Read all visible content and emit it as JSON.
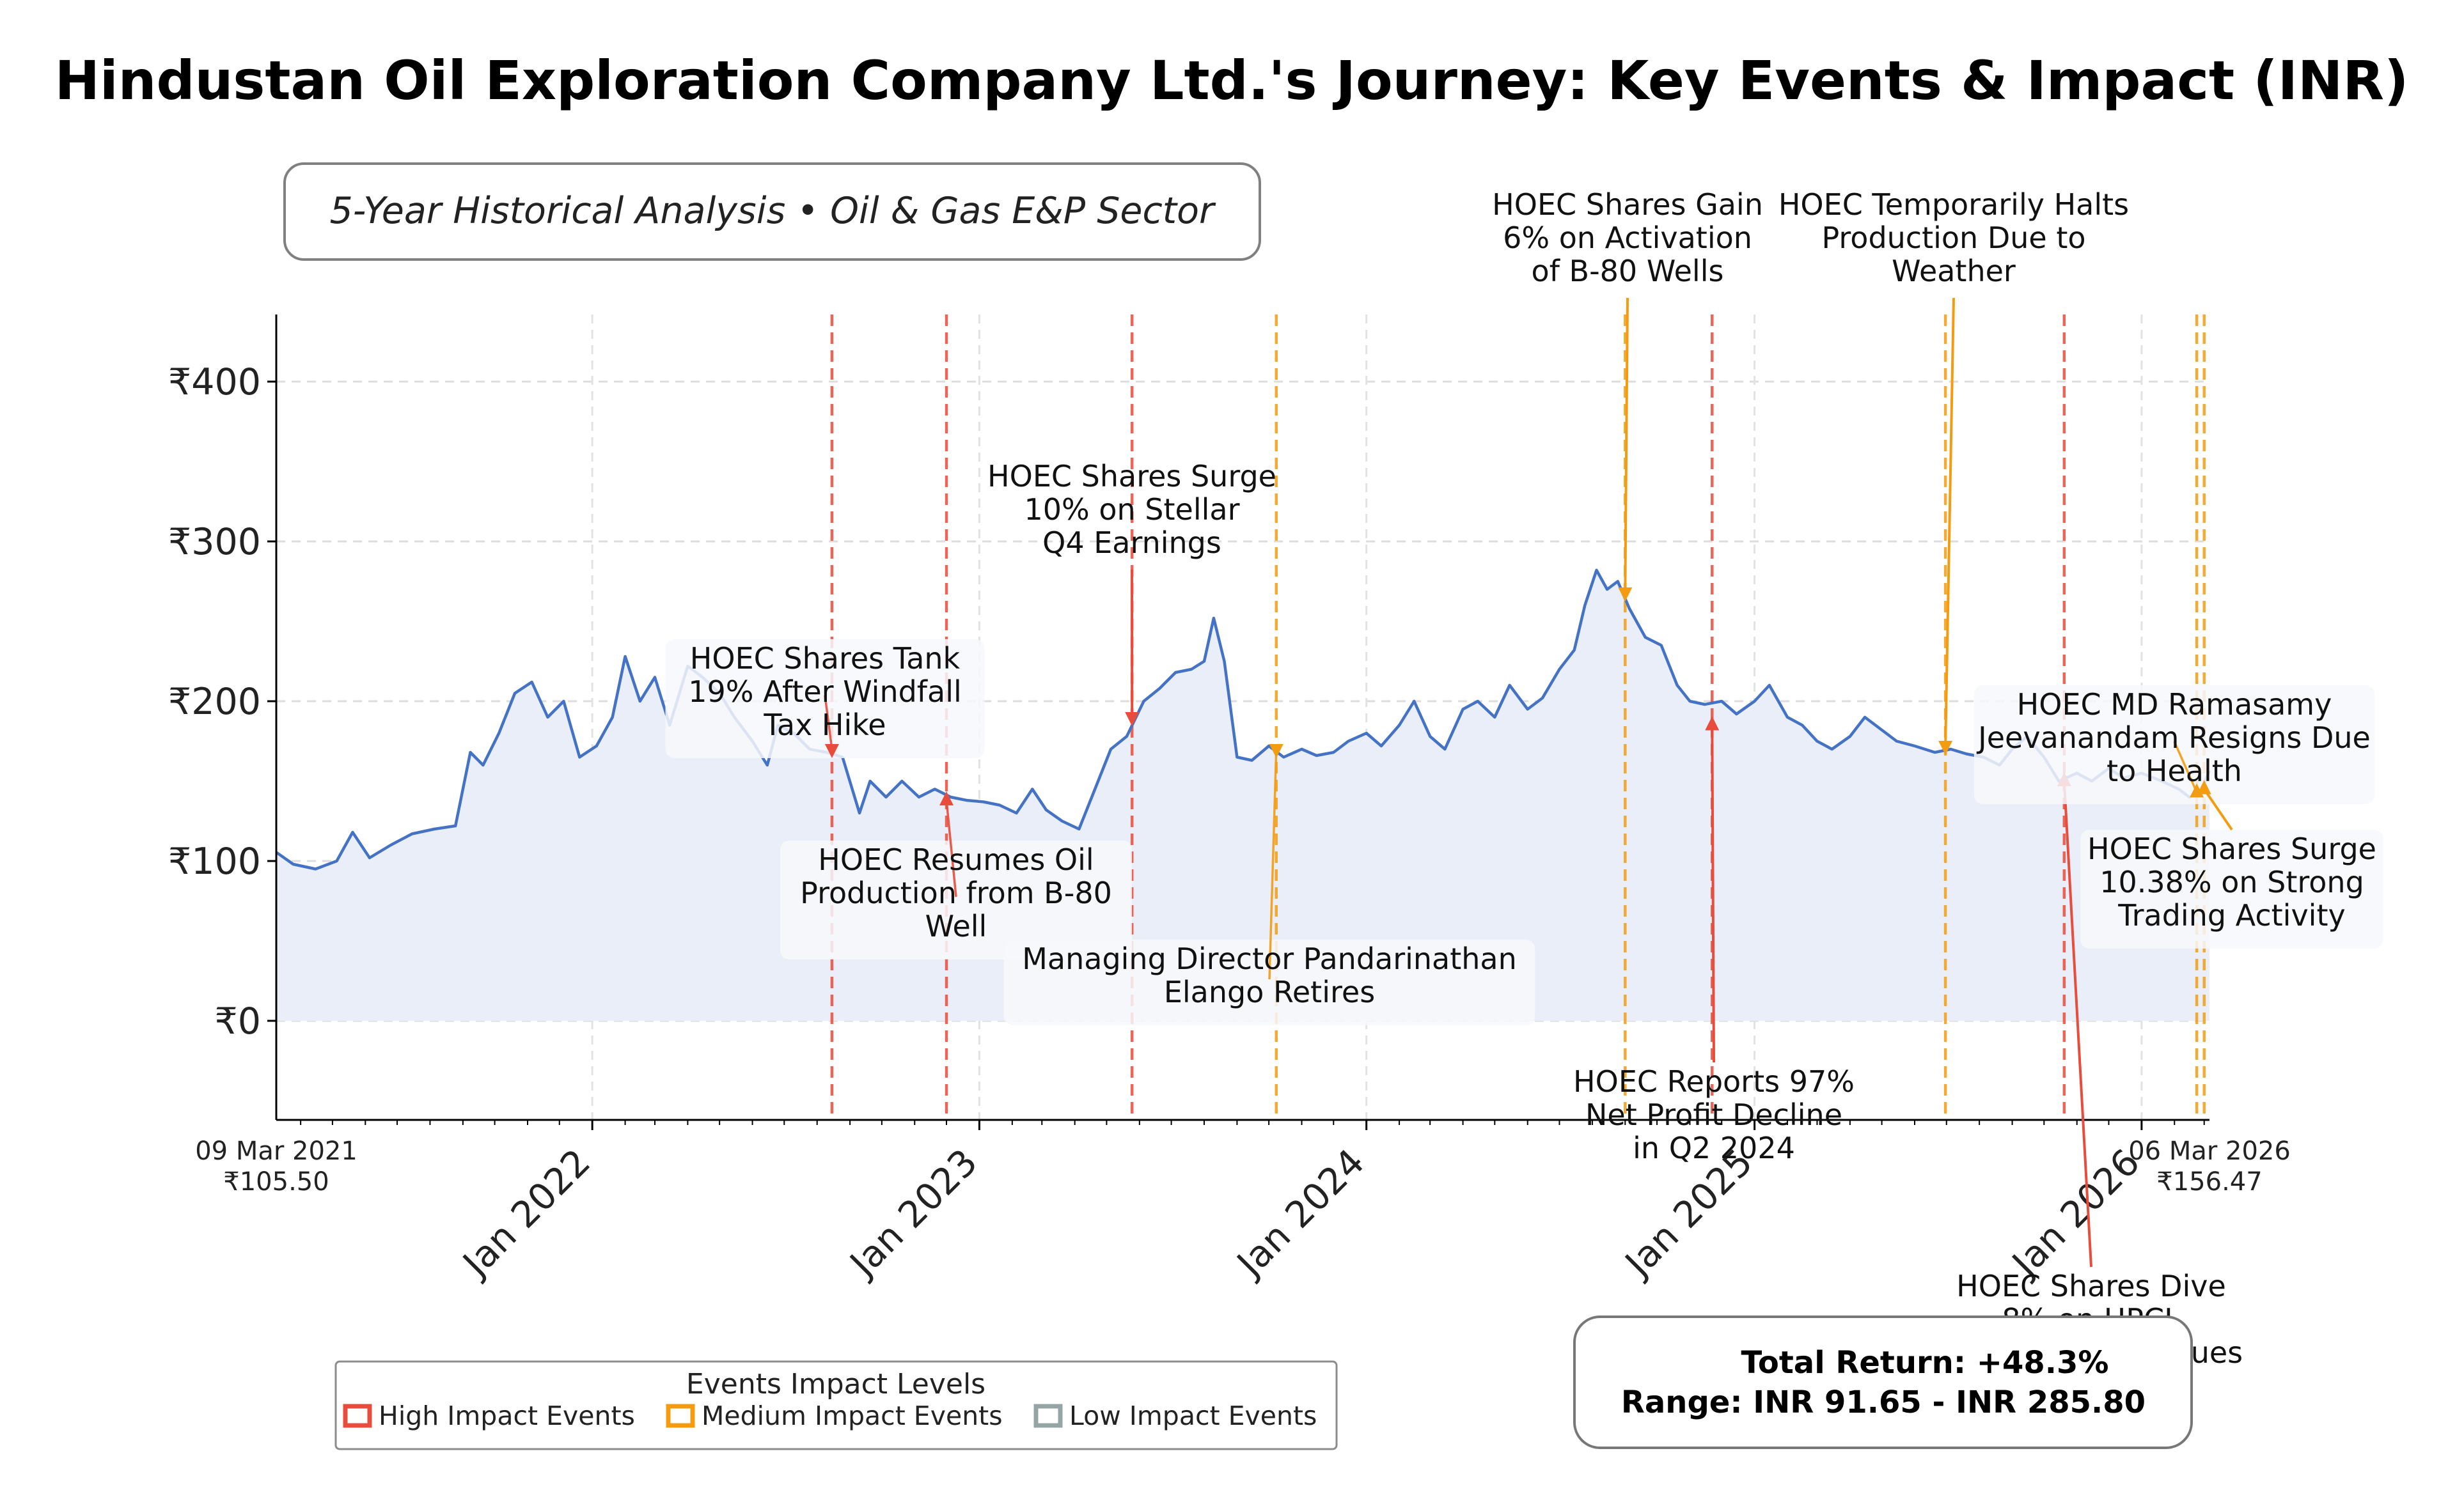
{
  "chart_data": {
    "type": "line",
    "title": "Hindustan Oil Exploration Company Ltd.'s Journey: Key Events & Impact (INR)",
    "subtitle": "5-Year Historical Analysis • Oil & Gas E&P Sector",
    "xlabel": "",
    "ylabel": "",
    "currency_symbol": "₹",
    "y_ticks": [
      0,
      100,
      200,
      300,
      400
    ],
    "y_tick_labels": [
      "₹0",
      "₹100",
      "₹200",
      "₹300",
      "₹400"
    ],
    "ylim": [
      -62,
      442
    ],
    "xlim": [
      "2021-03-09",
      "2026-03-06"
    ],
    "x_ticks": [
      "2022-01-01",
      "2023-01-01",
      "2024-01-01",
      "2025-01-01",
      "2026-01-01"
    ],
    "x_tick_labels": [
      "Jan 2022",
      "Jan 2023",
      "Jan 2024",
      "Jan 2025",
      "Jan 2026"
    ],
    "start_label": {
      "date": "09 Mar 2021",
      "price": "₹105.50"
    },
    "end_label": {
      "date": "06 Mar 2026",
      "price": "₹156.47"
    },
    "grid": true,
    "line_color": "#4472c4",
    "fill_color": "#e9eef8",
    "series": [
      {
        "points": [
          [
            "2021-03-09",
            105.5
          ],
          [
            "2021-03-25",
            98
          ],
          [
            "2021-04-15",
            95
          ],
          [
            "2021-05-05",
            100
          ],
          [
            "2021-05-20",
            118
          ],
          [
            "2021-06-05",
            102
          ],
          [
            "2021-06-25",
            110
          ],
          [
            "2021-07-15",
            117
          ],
          [
            "2021-08-05",
            120
          ],
          [
            "2021-08-25",
            122
          ],
          [
            "2021-09-08",
            168
          ],
          [
            "2021-09-20",
            160
          ],
          [
            "2021-10-05",
            180
          ],
          [
            "2021-10-20",
            205
          ],
          [
            "2021-11-05",
            212
          ],
          [
            "2021-11-20",
            190
          ],
          [
            "2021-12-05",
            200
          ],
          [
            "2021-12-20",
            165
          ],
          [
            "2022-01-05",
            172
          ],
          [
            "2022-01-20",
            190
          ],
          [
            "2022-02-01",
            228
          ],
          [
            "2022-02-15",
            200
          ],
          [
            "2022-03-01",
            215
          ],
          [
            "2022-03-15",
            185
          ],
          [
            "2022-04-01",
            222
          ],
          [
            "2022-04-15",
            215
          ],
          [
            "2022-05-01",
            205
          ],
          [
            "2022-05-15",
            190
          ],
          [
            "2022-06-01",
            175
          ],
          [
            "2022-06-15",
            160
          ],
          [
            "2022-06-25",
            185
          ],
          [
            "2022-07-10",
            180
          ],
          [
            "2022-07-25",
            170
          ],
          [
            "2022-08-10",
            168
          ],
          [
            "2022-08-25",
            165
          ],
          [
            "2022-09-10",
            130
          ],
          [
            "2022-09-20",
            150
          ],
          [
            "2022-10-05",
            140
          ],
          [
            "2022-10-20",
            150
          ],
          [
            "2022-11-05",
            140
          ],
          [
            "2022-11-20",
            145
          ],
          [
            "2022-12-05",
            140
          ],
          [
            "2022-12-20",
            138
          ],
          [
            "2023-01-05",
            137
          ],
          [
            "2023-01-20",
            135
          ],
          [
            "2023-02-05",
            130
          ],
          [
            "2023-02-20",
            145
          ],
          [
            "2023-03-05",
            132
          ],
          [
            "2023-03-20",
            125
          ],
          [
            "2023-04-05",
            120
          ],
          [
            "2023-04-20",
            145
          ],
          [
            "2023-05-05",
            170
          ],
          [
            "2023-05-20",
            178
          ],
          [
            "2023-06-05",
            200
          ],
          [
            "2023-06-20",
            208
          ],
          [
            "2023-07-05",
            218
          ],
          [
            "2023-07-20",
            220
          ],
          [
            "2023-08-01",
            225
          ],
          [
            "2023-08-10",
            252
          ],
          [
            "2023-08-20",
            225
          ],
          [
            "2023-09-01",
            165
          ],
          [
            "2023-09-15",
            163
          ],
          [
            "2023-10-01",
            172
          ],
          [
            "2023-10-15",
            165
          ],
          [
            "2023-11-01",
            170
          ],
          [
            "2023-11-15",
            166
          ],
          [
            "2023-12-01",
            168
          ],
          [
            "2023-12-15",
            175
          ],
          [
            "2024-01-01",
            180
          ],
          [
            "2024-01-15",
            172
          ],
          [
            "2024-02-01",
            185
          ],
          [
            "2024-02-15",
            200
          ],
          [
            "2024-03-01",
            178
          ],
          [
            "2024-03-15",
            170
          ],
          [
            "2024-04-01",
            195
          ],
          [
            "2024-04-15",
            200
          ],
          [
            "2024-05-01",
            190
          ],
          [
            "2024-05-15",
            210
          ],
          [
            "2024-06-01",
            195
          ],
          [
            "2024-06-15",
            202
          ],
          [
            "2024-07-01",
            220
          ],
          [
            "2024-07-15",
            232
          ],
          [
            "2024-07-25",
            260
          ],
          [
            "2024-08-05",
            282
          ],
          [
            "2024-08-15",
            270
          ],
          [
            "2024-08-25",
            275
          ],
          [
            "2024-09-05",
            258
          ],
          [
            "2024-09-20",
            240
          ],
          [
            "2024-10-05",
            235
          ],
          [
            "2024-10-20",
            210
          ],
          [
            "2024-11-01",
            200
          ],
          [
            "2024-11-15",
            198
          ],
          [
            "2024-12-01",
            200
          ],
          [
            "2024-12-15",
            192
          ],
          [
            "2025-01-01",
            200
          ],
          [
            "2025-01-15",
            210
          ],
          [
            "2025-02-01",
            190
          ],
          [
            "2025-02-15",
            185
          ],
          [
            "2025-03-01",
            175
          ],
          [
            "2025-03-15",
            170
          ],
          [
            "2025-04-01",
            178
          ],
          [
            "2025-04-15",
            190
          ],
          [
            "2025-05-01",
            182
          ],
          [
            "2025-05-15",
            175
          ],
          [
            "2025-06-01",
            172
          ],
          [
            "2025-06-20",
            168
          ],
          [
            "2025-07-05",
            170
          ],
          [
            "2025-07-20",
            167
          ],
          [
            "2025-08-05",
            165
          ],
          [
            "2025-08-20",
            160
          ],
          [
            "2025-09-01",
            170
          ],
          [
            "2025-09-15",
            178
          ],
          [
            "2025-10-01",
            165
          ],
          [
            "2025-10-15",
            150
          ],
          [
            "2025-11-01",
            155
          ],
          [
            "2025-11-15",
            150
          ],
          [
            "2025-12-01",
            158
          ],
          [
            "2025-12-15",
            152
          ],
          [
            "2026-01-01",
            155
          ],
          [
            "2026-01-20",
            150
          ],
          [
            "2026-02-05",
            145
          ],
          [
            "2026-02-15",
            140
          ],
          [
            "2026-02-25",
            143
          ],
          [
            "2026-03-06",
            156.47
          ]
        ]
      }
    ],
    "events": [
      {
        "date": "2022-08-15",
        "impact": "high",
        "marker_price": 170,
        "text": [
          "HOEC Shares Tank",
          "19% After Windfall",
          "Tax Hike"
        ]
      },
      {
        "date": "2022-12-01",
        "impact": "high",
        "marker_price": 138,
        "text": [
          "HOEC Resumes Oil",
          "Production from B-80",
          "Well"
        ]
      },
      {
        "date": "2023-05-25",
        "impact": "high",
        "marker_price": 190,
        "text": [
          "HOEC Shares Surge",
          "10% on Stellar",
          "Q4 Earnings"
        ]
      },
      {
        "date": "2023-10-08",
        "impact": "medium",
        "marker_price": 170,
        "text": [
          "Managing Director Pandarinathan",
          "Elango Retires"
        ]
      },
      {
        "date": "2024-09-01",
        "impact": "medium",
        "marker_price": 268,
        "text": [
          "HOEC Shares Gain",
          "6% on Activation",
          "of B-80 Wells"
        ]
      },
      {
        "date": "2024-11-22",
        "impact": "high",
        "marker_price": 185,
        "text": [
          "HOEC Reports 97%",
          "Net Profit Decline",
          "in Q2 2024"
        ]
      },
      {
        "date": "2025-06-30",
        "impact": "medium",
        "marker_price": 172,
        "text": [
          "HOEC Temporarily Halts",
          "Production Due to",
          "Weather"
        ]
      },
      {
        "date": "2025-10-20",
        "impact": "high",
        "marker_price": 150,
        "text": [
          "HOEC Shares Dive",
          "8% on HPCL",
          "Crude Quality Issues"
        ]
      },
      {
        "date": "2026-02-22",
        "impact": "medium",
        "marker_price": 143,
        "text": [
          "HOEC MD Ramasamy",
          "Jeevanandam Resigns Due",
          "to Health"
        ]
      },
      {
        "date": "2026-03-01",
        "impact": "medium",
        "marker_price": 145,
        "text": [
          "HOEC Shares Surge",
          "10.38% on Strong",
          "Trading Activity"
        ]
      }
    ],
    "impact_colors": {
      "high": "#e74c3c",
      "medium": "#f39c12",
      "low": "#95a5a6"
    },
    "legend": {
      "title": "Events Impact Levels",
      "position": "bottom-left",
      "entries": [
        {
          "key": "high",
          "label": "High Impact Events"
        },
        {
          "key": "medium",
          "label": "Medium Impact Events"
        },
        {
          "key": "low",
          "label": "Low Impact Events"
        }
      ]
    },
    "stats_box": {
      "line1": "Total Return: +48.3%",
      "line2": "Range: INR 91.65 - INR 285.80"
    }
  }
}
